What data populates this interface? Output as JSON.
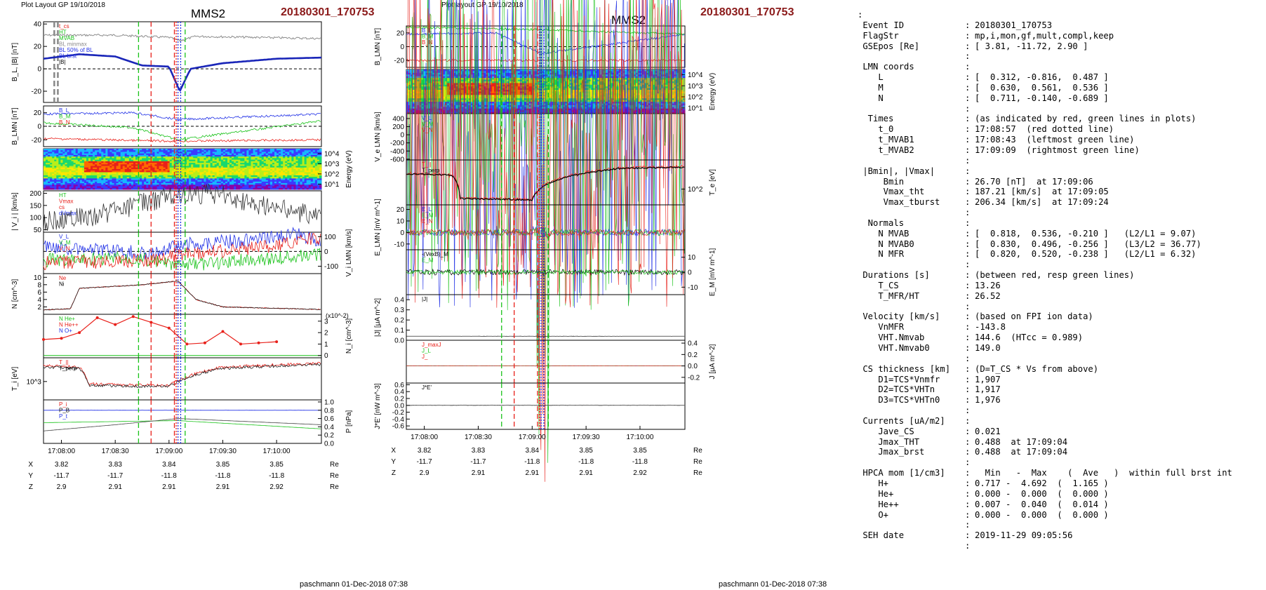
{
  "header": {
    "left_layout": "Plot Layout GP 19/10/2018",
    "mid_layout": "Plot layout GP 19/10/2018",
    "spacecraft": "MMS2",
    "event": "20180301_170753"
  },
  "footer": {
    "left": "paschmann 01-Dec-2018 07:38",
    "mid": "paschmann 01-Dec-2018 07:38"
  },
  "colors": {
    "event_red": "#8b1a1a",
    "red": "#e8201a",
    "green": "#19c219",
    "blue": "#1f2fe6",
    "black": "#000000",
    "gray": "#8c8c8c"
  },
  "time_axis": {
    "ticks": [
      "17:08:00",
      "17:08:30",
      "17:09:00",
      "17:09:30",
      "17:10:00"
    ]
  },
  "ephemeris": {
    "rows": [
      {
        "label": "X",
        "values": [
          "3.82",
          "3.83",
          "3.84",
          "3.85",
          "3.85"
        ],
        "unit": "Re"
      },
      {
        "label": "Y",
        "values": [
          "-11.7",
          "-11.7",
          "-11.8",
          "-11.8",
          "-11.8"
        ],
        "unit": "Re"
      },
      {
        "label": "Z",
        "values": [
          "2.9",
          "2.91",
          "2.91",
          "2.91",
          "2.92"
        ],
        "unit": "Re"
      }
    ]
  },
  "chart_data": [
    {
      "type": "line",
      "panel": "left-1",
      "ylabel": "B_L, |B| [nT]",
      "yticks": [
        "40",
        "20",
        "0",
        "-20"
      ],
      "ylim": [
        -30,
        42
      ],
      "legend": [
        "t_cs",
        "HT",
        "MVAB",
        "BL minmax",
        "BL 50% of BL",
        "BL brst",
        "|B|"
      ],
      "series": [
        {
          "name": "|B|",
          "x": [
            "17:07:50",
            "17:08:30",
            "17:09:00",
            "17:09:05",
            "17:09:20",
            "17:10:00",
            "17:10:20"
          ],
          "values": [
            30,
            30,
            29,
            26.7,
            29,
            26,
            27
          ]
        },
        {
          "name": "BL brst",
          "x": [
            "17:07:50",
            "17:08:10",
            "17:08:40",
            "17:09:00",
            "17:09:06",
            "17:09:20",
            "17:10:00",
            "17:10:20"
          ],
          "values": [
            9,
            12,
            11,
            2,
            -20,
            5,
            9,
            10
          ]
        }
      ]
    },
    {
      "type": "line",
      "panel": "left-2",
      "ylabel": "B_LMN [nT]",
      "yticks": [
        "20",
        "0",
        "-20"
      ],
      "ylim": [
        -30,
        30
      ],
      "legend": [
        "B_L",
        "B_M",
        "B_N"
      ]
    },
    {
      "type": "heatmap",
      "panel": "left-3",
      "ylabel": "Energy (eV)",
      "yticks": [
        "10^4",
        "10^3",
        "10^2",
        "10^1"
      ],
      "ylim": [
        3,
        30000
      ]
    },
    {
      "type": "line",
      "panel": "left-4",
      "ylabel": "| V_i | [km/s]",
      "yticks": [
        "200",
        "150",
        "100",
        "50"
      ],
      "ylim": [
        40,
        210
      ],
      "legend": [
        "HT",
        "Vmax",
        "cs",
        "dVmax"
      ]
    },
    {
      "type": "line",
      "panel": "left-5",
      "ylabel": "V_i LMN [km/s]",
      "yticks": [
        "100",
        "0",
        "-100"
      ],
      "ylim": [
        -150,
        130
      ],
      "legend": [
        "V_L",
        "V_M",
        "V_N"
      ]
    },
    {
      "type": "line",
      "panel": "left-6",
      "ylabel": "N [cm^-3]",
      "yticks": [
        "10",
        "8",
        "6",
        "4",
        "2"
      ],
      "ylim": [
        0,
        11
      ],
      "legend": [
        "Ne",
        "Ni"
      ]
    },
    {
      "type": "line",
      "panel": "left-7",
      "ylabel": "N_i [cm^-3]",
      "multiplier": "(x10^-2)",
      "yticks": [
        "3",
        "2",
        "1",
        "0"
      ],
      "ylim": [
        -0.2,
        3.6
      ],
      "legend": [
        "N He+",
        "N He++",
        "N O+"
      ],
      "series": [
        {
          "name": "N He++",
          "x": [
            "17:07:50",
            "17:08:00",
            "17:08:10",
            "17:08:20",
            "17:08:30",
            "17:08:40",
            "17:08:50",
            "17:09:00",
            "17:09:10",
            "17:09:20",
            "17:09:30",
            "17:09:40",
            "17:09:50",
            "17:10:00"
          ],
          "values": [
            1.4,
            1.5,
            2.0,
            3.3,
            2.7,
            3.4,
            2.9,
            2.4,
            1.0,
            1.1,
            2.1,
            1.0,
            1.1,
            1.2
          ]
        }
      ]
    },
    {
      "type": "line",
      "panel": "left-8",
      "ylabel": "T_i [eV]",
      "yticks": [
        "10^3"
      ],
      "ylim": [
        200,
        8000
      ],
      "legend": [
        "T_||",
        "T_perp"
      ]
    },
    {
      "type": "line",
      "panel": "left-9",
      "ylabel": "P [nPa]",
      "yticks": [
        "1.0",
        "0.8",
        "0.6",
        "0.4",
        "0.2",
        "0.0"
      ],
      "ylim": [
        0,
        1.05
      ],
      "legend": [
        "P_i",
        "P_B",
        "P_t"
      ]
    },
    {
      "type": "line",
      "panel": "mid-1",
      "ylabel": "B_LMN [nT]",
      "yticks": [
        "20",
        "0",
        "-20"
      ],
      "ylim": [
        -30,
        30
      ],
      "legend": [
        "B_L",
        "B_M",
        "B_N"
      ]
    },
    {
      "type": "heatmap",
      "panel": "mid-2",
      "ylabel": "Energy (eV)",
      "yticks": [
        "10^4",
        "10^3",
        "10^2",
        "10^1"
      ],
      "ylim": [
        3,
        30000
      ]
    },
    {
      "type": "line",
      "panel": "mid-3",
      "ylabel": "V_e LMN [km/s]",
      "yticks": [
        "400",
        "200",
        "0",
        "-200",
        "-400",
        "-600"
      ],
      "ylim": [
        -620,
        520
      ],
      "legend": [
        "V_L",
        "V_M",
        "V_N"
      ]
    },
    {
      "type": "line",
      "panel": "mid-4",
      "ylabel": "T_e [eV]",
      "yticks": [
        "10^2"
      ],
      "ylim": [
        20,
        2000
      ],
      "legend": [
        "T_||",
        "T_perp"
      ]
    },
    {
      "type": "line",
      "panel": "mid-5",
      "ylabel": "E_LMN [mV m^-1]",
      "yticks": [
        "20",
        "10",
        "0",
        "-10"
      ],
      "ylim": [
        -15,
        24
      ],
      "legend": [
        "E_L",
        "E_M",
        "E_N"
      ]
    },
    {
      "type": "line",
      "panel": "mid-6",
      "ylabel": "E_M [mV m^-1]",
      "yticks": [
        "10",
        "0",
        "-10"
      ],
      "ylim": [
        -15,
        15
      ],
      "legend": [
        "-(VexB)_M",
        "E_M"
      ]
    },
    {
      "type": "line",
      "panel": "mid-7",
      "ylabel": "|J| [μA m^-2]",
      "yticks": [
        "0.4",
        "0.3",
        "0.2",
        "0.1",
        "0.0"
      ],
      "ylim": [
        0,
        0.45
      ],
      "legend": [
        "|J|"
      ]
    },
    {
      "type": "line",
      "panel": "mid-8",
      "ylabel": "J [μA m^-2]",
      "yticks": [
        "0.4",
        "0.2",
        "0.0",
        "-0.2"
      ],
      "ylim": [
        -0.3,
        0.45
      ],
      "legend": [
        "J_maxJ",
        "J_L",
        "J_"
      ]
    },
    {
      "type": "line",
      "panel": "mid-9",
      "ylabel": "J*E' [nW m^-3]",
      "yticks": [
        "0.6",
        "0.4",
        "0.2",
        "0.0",
        "-0.2",
        "-0.4",
        "-0.6"
      ],
      "ylim": [
        -0.7,
        0.65
      ],
      "legend": [
        "J*E'"
      ]
    }
  ],
  "info": {
    "lead": ":",
    "rows": [
      [
        "Event ID",
        "20180301_170753"
      ],
      [
        "FlagStr",
        "mp,i,mon,gf,mult,compl,keep"
      ],
      [
        "GSEpos [Re]",
        "[ 3.81, -11.72, 2.90 ]"
      ],
      [
        "",
        ""
      ],
      [
        "LMN coords",
        ""
      ],
      [
        "   L",
        "[  0.312, -0.816,  0.487 ]"
      ],
      [
        "   M",
        "[  0.630,  0.561,  0.536 ]"
      ],
      [
        "   N",
        "[  0.711, -0.140, -0.689 ]"
      ],
      [
        "",
        ""
      ],
      [
        " Times",
        "(as indicated by red, green lines in plots)"
      ],
      [
        "   t_0",
        "17:08:57  (red dotted line)"
      ],
      [
        "   t_MVAB1",
        "17:08:43  (leftmost green line)"
      ],
      [
        "   t_MVAB2",
        "17:09:09  (rightmost green line)"
      ],
      [
        "",
        ""
      ],
      [
        "|Bmin|, |Vmax|",
        ""
      ],
      [
        "    Bmin",
        "26.70 [nT]  at 17:09:06"
      ],
      [
        "    Vmax_tht",
        "187.21 [km/s]  at 17:09:05"
      ],
      [
        "    Vmax_tburst",
        "206.34 [km/s]  at 17:09:24"
      ],
      [
        "",
        ""
      ],
      [
        " Normals",
        ""
      ],
      [
        "   N MVAB",
        "[  0.818,  0.536, -0.210 ]   (L2/L1 = 9.07)"
      ],
      [
        "   N MVAB0",
        "[  0.830,  0.496, -0.256 ]   (L3/L2 = 36.77)"
      ],
      [
        "   N MFR",
        "[  0.820,  0.520, -0.238 ]   (L2/L1 = 6.32)"
      ],
      [
        "",
        ""
      ],
      [
        "Durations [s]",
        "(between red, resp green lines)"
      ],
      [
        "   T_CS",
        "13.26"
      ],
      [
        "   T_MFR/HT",
        "26.52"
      ],
      [
        "",
        ""
      ],
      [
        "Velocity [km/s]",
        "(based on FPI ion data)"
      ],
      [
        "   VnMFR",
        "-143.8"
      ],
      [
        "   VHT.Nmvab",
        "144.6  (HTcc = 0.989)"
      ],
      [
        "   VHT.Nmvab0",
        "149.0"
      ],
      [
        "",
        ""
      ],
      [
        "CS thickness [km]",
        "(D=T_CS * Vs from above)"
      ],
      [
        "   D1=TCS*Vnmfr",
        "1,907"
      ],
      [
        "   D2=TCS*VHTn",
        "1,917"
      ],
      [
        "   D3=TCS*VHTn0",
        "1,976"
      ],
      [
        "",
        ""
      ],
      [
        "Currents [uA/m2]",
        ""
      ],
      [
        "   Jave_CS",
        "0.021"
      ],
      [
        "   Jmax_THT",
        "0.488  at 17:09:04"
      ],
      [
        "   Jmax_brst",
        "0.488  at 17:09:04"
      ],
      [
        "",
        ""
      ],
      [
        "HPCA mom [1/cm3]",
        "  Min   -  Max    (  Ave   )  within full brst int"
      ],
      [
        "   H+",
        "0.717 -  4.692  (  1.165 )"
      ],
      [
        "   He+",
        "0.000 -  0.000  (  0.000 )"
      ],
      [
        "   He++",
        "0.007 -  0.040  (  0.014 )"
      ],
      [
        "   O+",
        "0.000 -  0.000  (  0.000 )"
      ],
      [
        "",
        ""
      ],
      [
        "SEH date",
        "2019-11-29 09:05:56"
      ],
      [
        "",
        ""
      ]
    ]
  }
}
